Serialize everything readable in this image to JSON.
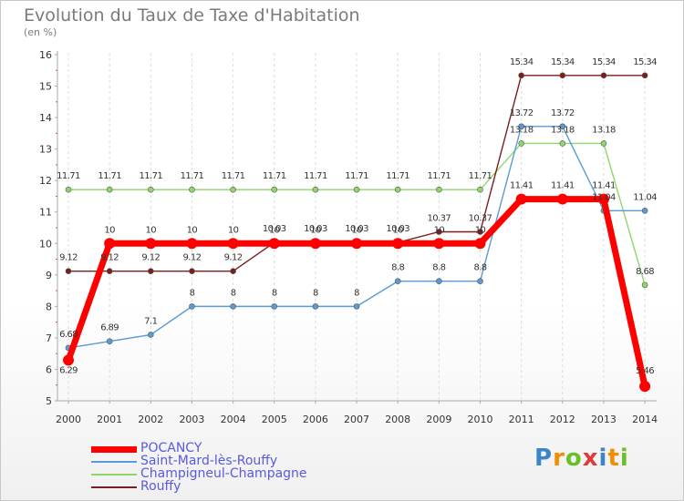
{
  "header": {
    "title": "Evolution du Taux de Taxe d'Habitation",
    "subtitle": "(en %)"
  },
  "logo": {
    "text": "Proxiti"
  },
  "chart_data": {
    "type": "line",
    "title": "Evolution du Taux de Taxe d'Habitation",
    "subtitle": "(en %)",
    "xlabel": "",
    "ylabel": "",
    "categories": [
      "2000",
      "2001",
      "2002",
      "2003",
      "2004",
      "2005",
      "2006",
      "2007",
      "2008",
      "2009",
      "2010",
      "2011",
      "2012",
      "2013",
      "2014"
    ],
    "ylim": [
      5,
      16
    ],
    "yticks": [
      "5",
      "6",
      "7",
      "8",
      "9",
      "10",
      "11",
      "12",
      "13",
      "14",
      "15",
      "16"
    ],
    "grid": "vertical",
    "legend_position": "bottom-left",
    "series": [
      {
        "name": "POCANCY",
        "color": "#ff0000",
        "values": [
          6.29,
          10,
          10,
          10,
          10,
          10,
          10,
          10,
          10,
          10,
          10,
          11.41,
          11.41,
          11.41,
          5.46
        ],
        "labels": [
          "6.29",
          "10",
          "10",
          "10",
          "10",
          "10",
          "10",
          "10",
          "10",
          "10",
          "10",
          "11.41",
          "11.41",
          "11.41",
          "5.46"
        ]
      },
      {
        "name": "Saint-Mard-lès-Rouffy",
        "color": "#5b9bd5",
        "values": [
          6.68,
          6.89,
          7.1,
          8,
          8,
          8,
          8,
          8,
          8.8,
          8.8,
          8.8,
          13.72,
          13.72,
          11.04,
          11.04
        ],
        "labels": [
          "6.68",
          "6.89",
          "7.1",
          "8",
          "8",
          "8",
          "8",
          "8",
          "8.8",
          "8.8",
          "8.8",
          "13.72",
          "13.72",
          "11.04",
          "11.04"
        ]
      },
      {
        "name": "Champigneul-Champagne",
        "color": "#8ed66b",
        "values": [
          11.71,
          11.71,
          11.71,
          11.71,
          11.71,
          11.71,
          11.71,
          11.71,
          11.71,
          11.71,
          11.71,
          13.18,
          13.18,
          13.18,
          8.68
        ],
        "labels": [
          "11.71",
          "11.71",
          "11.71",
          "11.71",
          "11.71",
          "11.71",
          "11.71",
          "11.71",
          "11.71",
          "11.71",
          "11.71",
          "13.18",
          "13.18",
          "13.18",
          "8.68"
        ]
      },
      {
        "name": "Rouffy",
        "color": "#7b1e1e",
        "values": [
          9.12,
          9.12,
          9.12,
          9.12,
          9.12,
          10.03,
          10.03,
          10.03,
          10.03,
          10.37,
          10.37,
          15.34,
          15.34,
          15.34,
          15.34
        ],
        "labels": [
          "9.12",
          "9.12",
          "9.12",
          "9.12",
          "9.12",
          "10.03",
          "10.03",
          "10.03",
          "10.03",
          "10.37",
          "10.37",
          "15.34",
          "15.34",
          "15.34",
          "15.34"
        ]
      }
    ]
  }
}
